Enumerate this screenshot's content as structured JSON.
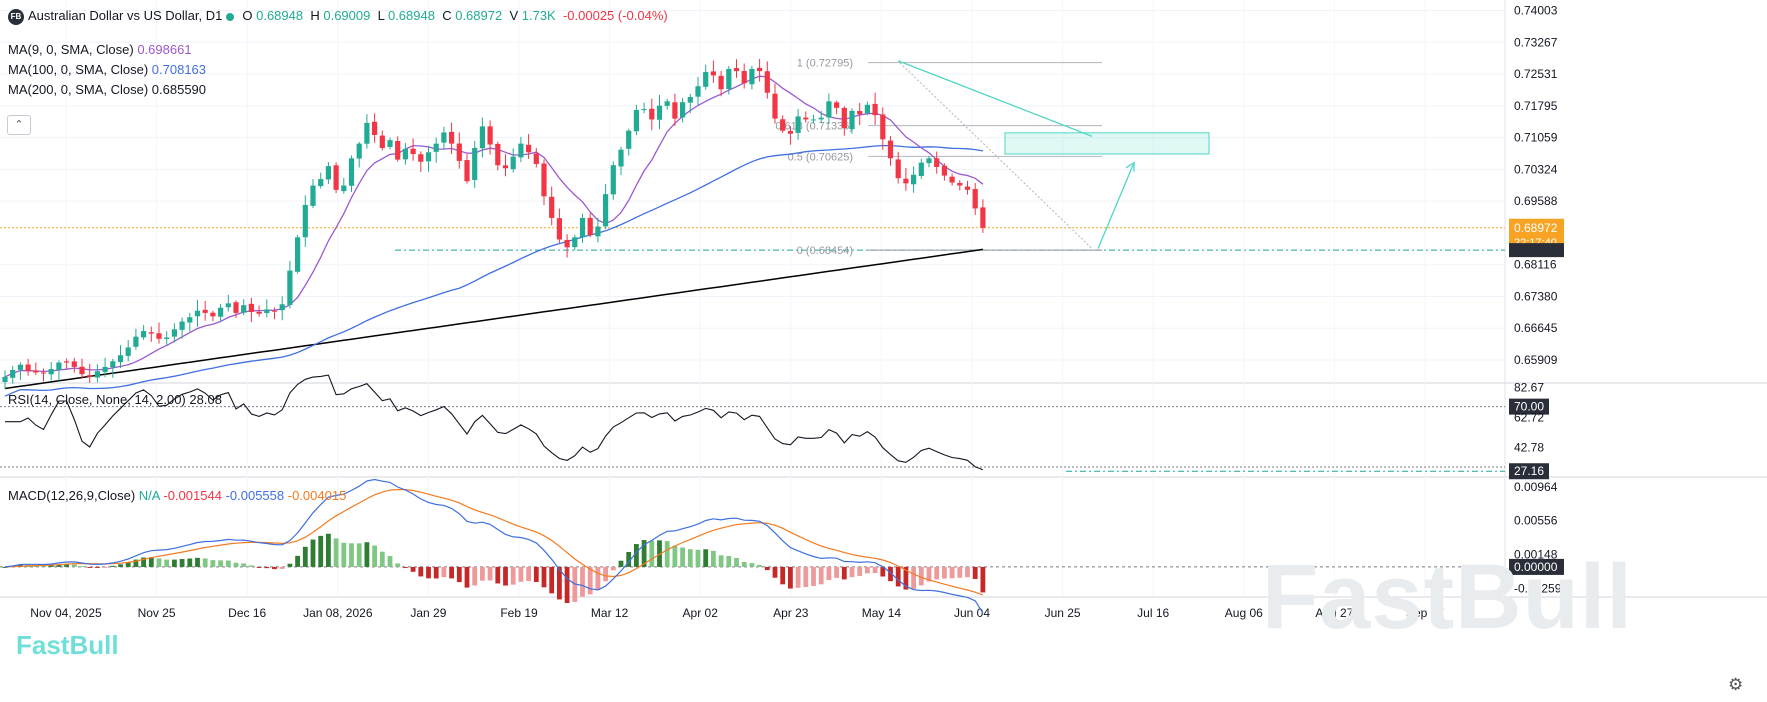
{
  "header": {
    "symbol_badge": "FB",
    "title": "Australian Dollar vs US Dollar, D1",
    "open_label": "O",
    "open": "0.68948",
    "high_label": "H",
    "high": "0.69009",
    "low_label": "L",
    "low": "0.68948",
    "close_label": "C",
    "close": "0.68972",
    "volume_label": "V",
    "volume": "1.73K",
    "change": "-0.00025 (-0.04%)"
  },
  "indicators": {
    "ma9": {
      "label": "MA(9, 0, SMA, Close)",
      "value": "0.698661",
      "color": "#9b59d0"
    },
    "ma100": {
      "label": "MA(100, 0, SMA, Close)",
      "value": "0.708163",
      "color": "#3f6fe0"
    },
    "ma200": {
      "label": "MA(200, 0, SMA, Close)",
      "value": "0.685590",
      "color": "#000000"
    },
    "rsi": {
      "label": "RSI(14, Close, None, 14, 2.00)",
      "value": "28.08"
    },
    "macd": {
      "label": "MACD(12,26,9,Close)",
      "na": "N/A",
      "macd": "-0.001544",
      "signal": "-0.005558",
      "hist": "-0.004015"
    }
  },
  "colors": {
    "up": "#22ab94",
    "down": "#f23645",
    "accent": "#f7a324",
    "teal": "#4fd6c4"
  },
  "chart_data": {
    "type": "candlestick",
    "title": "Australian Dollar vs US Dollar, D1",
    "x_ticks": [
      "Nov 04, 2025",
      "Nov 25",
      "Dec 16",
      "Jan 08, 2026",
      "Jan 29",
      "Feb 19",
      "Mar 12",
      "Apr 02",
      "Apr 23",
      "May 14",
      "Jun 04",
      "Jun 25",
      "Jul 16",
      "Aug 06",
      "Aug 27",
      "Sep 17"
    ],
    "price_ticks": [
      "0.74003",
      "0.73267",
      "0.72531",
      "0.71795",
      "0.71059",
      "0.70324",
      "0.69588",
      "0.68116",
      "0.67380",
      "0.66645",
      "0.65909"
    ],
    "price_range": [
      0.654,
      0.742
    ],
    "last_price": "0.68972",
    "countdown": "22:17:40",
    "support_level": "0.68454",
    "fibonacci": [
      {
        "label": "1 (0.72795)",
        "value": 0.72795
      },
      {
        "label": "0.618 (0.71336)",
        "value": 0.71336
      },
      {
        "label": "0.5 (0.70625)",
        "value": 0.70625
      },
      {
        "label": "0 (0.68454)",
        "value": 0.68454
      }
    ],
    "series": [
      {
        "name": "AUDUSD close (approx.)",
        "values": [
          0.6552,
          0.6568,
          0.658,
          0.6565,
          0.6562,
          0.656,
          0.657,
          0.6585,
          0.6585,
          0.6575,
          0.6558,
          0.6552,
          0.6565,
          0.6575,
          0.6588,
          0.6602,
          0.662,
          0.6645,
          0.6658,
          0.6652,
          0.664,
          0.6643,
          0.6662,
          0.668,
          0.669,
          0.6705,
          0.67,
          0.6692,
          0.6712,
          0.6722,
          0.67,
          0.6718,
          0.6702,
          0.6698,
          0.6708,
          0.6705,
          0.672,
          0.6798,
          0.6875,
          0.695,
          0.6995,
          0.701,
          0.704,
          0.6985,
          0.6995,
          0.7058,
          0.7092,
          0.714,
          0.7112,
          0.7082,
          0.71,
          0.7055,
          0.708,
          0.7068,
          0.705,
          0.7072,
          0.7092,
          0.7118,
          0.7092,
          0.7052,
          0.7005,
          0.7082,
          0.7132,
          0.709,
          0.7042,
          0.7035,
          0.7062,
          0.7092,
          0.7072,
          0.7045,
          0.697,
          0.692,
          0.687,
          0.6852,
          0.6875,
          0.692,
          0.688,
          0.69,
          0.6975,
          0.7042,
          0.7078,
          0.7122,
          0.717,
          0.7172,
          0.7148,
          0.718,
          0.719,
          0.715,
          0.7188,
          0.72,
          0.7225,
          0.7258,
          0.725,
          0.7218,
          0.7265,
          0.726,
          0.7232,
          0.7265,
          0.726,
          0.721,
          0.715,
          0.7122,
          0.7115,
          0.7155,
          0.7148,
          0.7148,
          0.7152,
          0.719,
          0.7175,
          0.7128,
          0.7168,
          0.716,
          0.7182,
          0.7158,
          0.7102,
          0.7058,
          0.7012,
          0.7,
          0.702,
          0.7048,
          0.7058,
          0.7038,
          0.7018,
          0.7002,
          0.6995,
          0.6985,
          0.6942,
          0.6897
        ]
      }
    ],
    "rsi_ticks": [
      "82.67",
      "70.00",
      "62.72",
      "42.78",
      "27.16"
    ],
    "macd_ticks": [
      "0.00964",
      "0.00556",
      "0.00148",
      "0.00000",
      "-0.00259"
    ]
  },
  "watermark": "FastBull",
  "logo_text": "FastBull"
}
